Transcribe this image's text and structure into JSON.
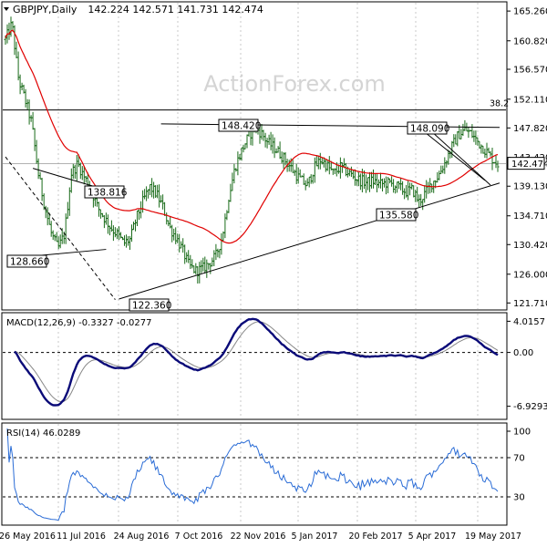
{
  "chart_data": {
    "type": "ohlc",
    "header": {
      "symbol": "GBPJPY,Daily",
      "ohlc_text": "142.224 142.571 141.731 142.474",
      "current_price": "142.474"
    },
    "watermark": "ActionForex.com",
    "x_tick_labels": [
      "26 May 2016",
      "11 Jul 2016",
      "24 Aug 2016",
      "7 Oct 2016",
      "22 Nov 2016",
      "5 Jan 2017",
      "20 Feb 2017",
      "5 Apr 2017",
      "19 May 2017"
    ],
    "price_panel": {
      "y_ticks": [
        "165.260",
        "160.820",
        "156.570",
        "152.110",
        "147.820",
        "143.420",
        "139.130",
        "134.710",
        "130.420",
        "126.000",
        "121.710"
      ],
      "ylim": [
        120.8,
        166.5
      ],
      "fib_level_label": "38.2",
      "fib_level_value": 150.5,
      "annotations": [
        "148.420",
        "148.090",
        "138.816",
        "128.660",
        "135.580",
        "122.360"
      ],
      "close_series": [
        161.0,
        163.4,
        155.0,
        152.0,
        148.5,
        141.0,
        136.0,
        132.0,
        129.8,
        132.0,
        141.0,
        142.5,
        140.5,
        138.8,
        136.0,
        134.5,
        133.0,
        132.0,
        130.6,
        131.2,
        134.5,
        137.0,
        139.0,
        138.0,
        136.0,
        133.0,
        131.5,
        129.5,
        127.2,
        126.5,
        126.8,
        127.6,
        128.6,
        131.5,
        137.5,
        142.0,
        144.5,
        146.5,
        148.0,
        147.0,
        145.6,
        144.8,
        143.8,
        142.5,
        141.2,
        140.0,
        139.2,
        141.8,
        143.1,
        142.2,
        141.0,
        142.0,
        141.3,
        140.6,
        140.0,
        139.7,
        139.9,
        139.4,
        139.6,
        139.4,
        138.9,
        138.3,
        138.6,
        136.8,
        138.2,
        139.6,
        140.8,
        142.8,
        145.0,
        146.8,
        147.6,
        146.9,
        145.7,
        144.6,
        143.4,
        142.5
      ]
    },
    "macd_panel": {
      "label": "MACD(12,26,9) -0.3327 -0.0277",
      "y_ticks": [
        "4.0157",
        "0.00",
        "-6.9293"
      ]
    },
    "rsi_panel": {
      "label": "RSI(14) 46.0289",
      "y_ticks": [
        "100",
        "70",
        "30",
        "0"
      ]
    },
    "colors": {
      "candle": "#1a6b1a",
      "ma": "#e00000",
      "macd": "#0a0a78",
      "signal": "#888888",
      "rsi": "#2a6cd6",
      "trend": "#000000",
      "grid": "#c8c8c8"
    }
  }
}
